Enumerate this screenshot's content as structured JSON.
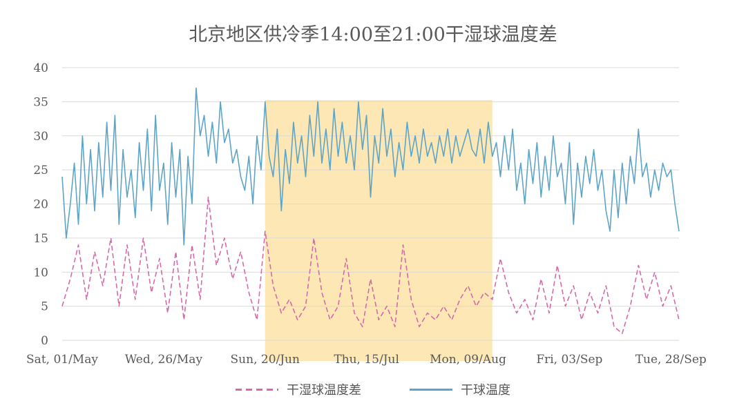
{
  "chart_data": {
    "type": "line",
    "title": "北京地区供冷季14:00至21:00干湿球温度差",
    "xlabel": "",
    "ylabel": "",
    "ylim": [
      0,
      40
    ],
    "yticks": [
      0,
      5,
      10,
      15,
      20,
      25,
      30,
      35,
      40
    ],
    "x_range": [
      "2021-05-01",
      "2021-09-30"
    ],
    "x_tick_labels": [
      {
        "date": "2021-05-01",
        "label": "Sat, 01/May"
      },
      {
        "date": "2021-05-26",
        "label": "Wed, 26/May"
      },
      {
        "date": "2021-06-20",
        "label": "Sun, 20/Jun"
      },
      {
        "date": "2021-07-15",
        "label": "Thu, 15/Jul"
      },
      {
        "date": "2021-08-09",
        "label": "Mon, 09/Aug"
      },
      {
        "date": "2021-09-03",
        "label": "Fri, 03/Sep"
      },
      {
        "date": "2021-09-28",
        "label": "Tue, 28/Sep"
      }
    ],
    "grid": "horizontal",
    "legend_position": "bottom",
    "highlight_band": {
      "start": "2021-06-20",
      "end": "2021-08-15",
      "color": "#fbe3a8"
    },
    "series": [
      {
        "name": "干湿球温度差",
        "style": "dashed",
        "color": "#d46aa9",
        "points": [
          [
            "2021-05-01",
            5
          ],
          [
            "2021-05-03",
            9
          ],
          [
            "2021-05-05",
            14
          ],
          [
            "2021-05-07",
            6
          ],
          [
            "2021-05-09",
            13
          ],
          [
            "2021-05-11",
            8
          ],
          [
            "2021-05-13",
            15
          ],
          [
            "2021-05-15",
            5
          ],
          [
            "2021-05-17",
            14
          ],
          [
            "2021-05-19",
            6
          ],
          [
            "2021-05-21",
            15
          ],
          [
            "2021-05-23",
            7
          ],
          [
            "2021-05-25",
            12
          ],
          [
            "2021-05-27",
            4
          ],
          [
            "2021-05-29",
            13
          ],
          [
            "2021-05-31",
            3
          ],
          [
            "2021-06-02",
            14
          ],
          [
            "2021-06-04",
            6
          ],
          [
            "2021-06-06",
            21
          ],
          [
            "2021-06-08",
            11
          ],
          [
            "2021-06-10",
            15
          ],
          [
            "2021-06-12",
            9
          ],
          [
            "2021-06-14",
            13
          ],
          [
            "2021-06-16",
            7
          ],
          [
            "2021-06-18",
            3
          ],
          [
            "2021-06-20",
            16
          ],
          [
            "2021-06-22",
            8
          ],
          [
            "2021-06-24",
            4
          ],
          [
            "2021-06-26",
            6
          ],
          [
            "2021-06-28",
            3
          ],
          [
            "2021-06-30",
            5
          ],
          [
            "2021-07-02",
            15
          ],
          [
            "2021-07-04",
            7
          ],
          [
            "2021-07-06",
            3
          ],
          [
            "2021-07-08",
            5
          ],
          [
            "2021-07-10",
            12
          ],
          [
            "2021-07-12",
            4
          ],
          [
            "2021-07-14",
            2
          ],
          [
            "2021-07-16",
            9
          ],
          [
            "2021-07-18",
            3
          ],
          [
            "2021-07-20",
            5
          ],
          [
            "2021-07-22",
            2
          ],
          [
            "2021-07-24",
            14
          ],
          [
            "2021-07-26",
            6
          ],
          [
            "2021-07-28",
            2
          ],
          [
            "2021-07-30",
            4
          ],
          [
            "2021-08-01",
            3
          ],
          [
            "2021-08-03",
            5
          ],
          [
            "2021-08-05",
            3
          ],
          [
            "2021-08-07",
            6
          ],
          [
            "2021-08-09",
            8
          ],
          [
            "2021-08-11",
            5
          ],
          [
            "2021-08-13",
            7
          ],
          [
            "2021-08-15",
            6
          ],
          [
            "2021-08-17",
            12
          ],
          [
            "2021-08-19",
            7
          ],
          [
            "2021-08-21",
            4
          ],
          [
            "2021-08-23",
            6
          ],
          [
            "2021-08-25",
            3
          ],
          [
            "2021-08-27",
            9
          ],
          [
            "2021-08-29",
            4
          ],
          [
            "2021-08-31",
            11
          ],
          [
            "2021-09-02",
            5
          ],
          [
            "2021-09-04",
            8
          ],
          [
            "2021-09-06",
            3
          ],
          [
            "2021-09-08",
            7
          ],
          [
            "2021-09-10",
            4
          ],
          [
            "2021-09-12",
            8
          ],
          [
            "2021-09-14",
            2
          ],
          [
            "2021-09-16",
            1
          ],
          [
            "2021-09-18",
            5
          ],
          [
            "2021-09-20",
            11
          ],
          [
            "2021-09-22",
            6
          ],
          [
            "2021-09-24",
            10
          ],
          [
            "2021-09-26",
            5
          ],
          [
            "2021-09-28",
            8
          ],
          [
            "2021-09-30",
            3
          ]
        ]
      },
      {
        "name": "干球温度",
        "style": "solid",
        "color": "#5ea4c6",
        "points": [
          [
            "2021-05-01",
            24
          ],
          [
            "2021-05-02",
            15
          ],
          [
            "2021-05-03",
            20
          ],
          [
            "2021-05-04",
            26
          ],
          [
            "2021-05-05",
            17
          ],
          [
            "2021-05-06",
            30
          ],
          [
            "2021-05-07",
            20
          ],
          [
            "2021-05-08",
            28
          ],
          [
            "2021-05-09",
            19
          ],
          [
            "2021-05-10",
            29
          ],
          [
            "2021-05-11",
            21
          ],
          [
            "2021-05-12",
            32
          ],
          [
            "2021-05-13",
            22
          ],
          [
            "2021-05-14",
            33
          ],
          [
            "2021-05-15",
            17
          ],
          [
            "2021-05-16",
            28
          ],
          [
            "2021-05-17",
            21
          ],
          [
            "2021-05-18",
            25
          ],
          [
            "2021-05-19",
            18
          ],
          [
            "2021-05-20",
            29
          ],
          [
            "2021-05-21",
            22
          ],
          [
            "2021-05-22",
            31
          ],
          [
            "2021-05-23",
            19
          ],
          [
            "2021-05-24",
            33
          ],
          [
            "2021-05-25",
            22
          ],
          [
            "2021-05-26",
            26
          ],
          [
            "2021-05-27",
            17
          ],
          [
            "2021-05-28",
            29
          ],
          [
            "2021-05-29",
            21
          ],
          [
            "2021-05-30",
            28
          ],
          [
            "2021-05-31",
            14
          ],
          [
            "2021-06-01",
            27
          ],
          [
            "2021-06-02",
            20
          ],
          [
            "2021-06-03",
            37
          ],
          [
            "2021-06-04",
            30
          ],
          [
            "2021-06-05",
            33
          ],
          [
            "2021-06-06",
            27
          ],
          [
            "2021-06-07",
            32
          ],
          [
            "2021-06-08",
            26
          ],
          [
            "2021-06-09",
            35
          ],
          [
            "2021-06-10",
            29
          ],
          [
            "2021-06-11",
            31
          ],
          [
            "2021-06-12",
            26
          ],
          [
            "2021-06-13",
            28
          ],
          [
            "2021-06-14",
            24
          ],
          [
            "2021-06-15",
            22
          ],
          [
            "2021-06-16",
            27
          ],
          [
            "2021-06-17",
            20
          ],
          [
            "2021-06-18",
            30
          ],
          [
            "2021-06-19",
            25
          ],
          [
            "2021-06-20",
            35
          ],
          [
            "2021-06-21",
            27
          ],
          [
            "2021-06-22",
            24
          ],
          [
            "2021-06-23",
            31
          ],
          [
            "2021-06-24",
            19
          ],
          [
            "2021-06-25",
            28
          ],
          [
            "2021-06-26",
            23
          ],
          [
            "2021-06-27",
            32
          ],
          [
            "2021-06-28",
            26
          ],
          [
            "2021-06-29",
            30
          ],
          [
            "2021-06-30",
            24
          ],
          [
            "2021-07-01",
            33
          ],
          [
            "2021-07-02",
            27
          ],
          [
            "2021-07-03",
            35
          ],
          [
            "2021-07-04",
            26
          ],
          [
            "2021-07-05",
            31
          ],
          [
            "2021-07-06",
            25
          ],
          [
            "2021-07-07",
            34
          ],
          [
            "2021-07-08",
            27
          ],
          [
            "2021-07-09",
            32
          ],
          [
            "2021-07-10",
            26
          ],
          [
            "2021-07-11",
            30
          ],
          [
            "2021-07-12",
            25
          ],
          [
            "2021-07-13",
            35
          ],
          [
            "2021-07-14",
            28
          ],
          [
            "2021-07-15",
            33
          ],
          [
            "2021-07-16",
            21
          ],
          [
            "2021-07-17",
            30
          ],
          [
            "2021-07-18",
            26
          ],
          [
            "2021-07-19",
            34
          ],
          [
            "2021-07-20",
            27
          ],
          [
            "2021-07-21",
            31
          ],
          [
            "2021-07-22",
            24
          ],
          [
            "2021-07-23",
            29
          ],
          [
            "2021-07-24",
            25
          ],
          [
            "2021-07-25",
            32
          ],
          [
            "2021-07-26",
            27
          ],
          [
            "2021-07-27",
            30
          ],
          [
            "2021-07-28",
            26
          ],
          [
            "2021-07-29",
            31
          ],
          [
            "2021-07-30",
            27
          ],
          [
            "2021-07-31",
            29
          ],
          [
            "2021-08-01",
            26
          ],
          [
            "2021-08-02",
            30
          ],
          [
            "2021-08-03",
            27
          ],
          [
            "2021-08-04",
            31
          ],
          [
            "2021-08-05",
            26
          ],
          [
            "2021-08-06",
            30
          ],
          [
            "2021-08-07",
            27
          ],
          [
            "2021-08-08",
            29
          ],
          [
            "2021-08-09",
            31
          ],
          [
            "2021-08-10",
            28
          ],
          [
            "2021-08-11",
            27
          ],
          [
            "2021-08-12",
            31
          ],
          [
            "2021-08-13",
            26
          ],
          [
            "2021-08-14",
            32
          ],
          [
            "2021-08-15",
            27
          ],
          [
            "2021-08-16",
            29
          ],
          [
            "2021-08-17",
            24
          ],
          [
            "2021-08-18",
            30
          ],
          [
            "2021-08-19",
            25
          ],
          [
            "2021-08-20",
            31
          ],
          [
            "2021-08-21",
            22
          ],
          [
            "2021-08-22",
            26
          ],
          [
            "2021-08-23",
            20
          ],
          [
            "2021-08-24",
            28
          ],
          [
            "2021-08-25",
            23
          ],
          [
            "2021-08-26",
            29
          ],
          [
            "2021-08-27",
            21
          ],
          [
            "2021-08-28",
            27
          ],
          [
            "2021-08-29",
            22
          ],
          [
            "2021-08-30",
            30
          ],
          [
            "2021-08-31",
            24
          ],
          [
            "2021-09-01",
            26
          ],
          [
            "2021-09-02",
            20
          ],
          [
            "2021-09-03",
            29
          ],
          [
            "2021-09-04",
            17
          ],
          [
            "2021-09-05",
            26
          ],
          [
            "2021-09-06",
            21
          ],
          [
            "2021-09-07",
            27
          ],
          [
            "2021-09-08",
            23
          ],
          [
            "2021-09-09",
            28
          ],
          [
            "2021-09-10",
            22
          ],
          [
            "2021-09-11",
            25
          ],
          [
            "2021-09-12",
            19
          ],
          [
            "2021-09-13",
            16
          ],
          [
            "2021-09-14",
            25
          ],
          [
            "2021-09-15",
            18
          ],
          [
            "2021-09-16",
            26
          ],
          [
            "2021-09-17",
            20
          ],
          [
            "2021-09-18",
            27
          ],
          [
            "2021-09-19",
            23
          ],
          [
            "2021-09-20",
            31
          ],
          [
            "2021-09-21",
            24
          ],
          [
            "2021-09-22",
            26
          ],
          [
            "2021-09-23",
            21
          ],
          [
            "2021-09-24",
            25
          ],
          [
            "2021-09-25",
            22
          ],
          [
            "2021-09-26",
            26
          ],
          [
            "2021-09-27",
            24
          ],
          [
            "2021-09-28",
            25
          ],
          [
            "2021-09-29",
            20
          ],
          [
            "2021-09-30",
            16
          ]
        ]
      }
    ]
  }
}
